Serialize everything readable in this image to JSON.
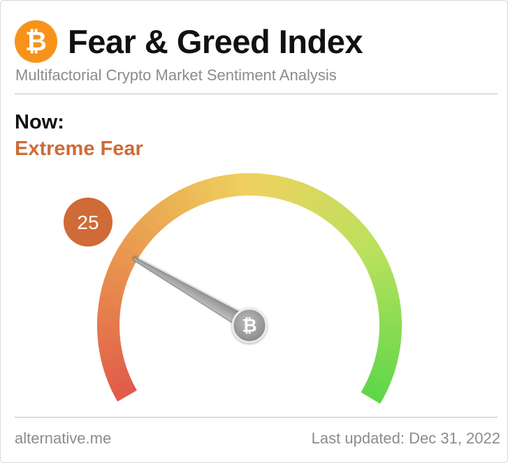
{
  "header": {
    "logo_symbol": "₿",
    "title": "Fear & Greed Index",
    "subtitle": "Multifactorial Crypto Market Sentiment Analysis"
  },
  "status": {
    "now_label": "Now:",
    "classification": "Extreme Fear",
    "classification_color": "#cf6b36"
  },
  "chart_data": {
    "type": "gauge",
    "value": 25,
    "min": 0,
    "max": 100,
    "value_label": "25",
    "badge_color": "#cf6b36",
    "needle_icon": "bitcoin-icon",
    "needle_symbol": "₿",
    "gradient_colors": [
      "#e05a4a",
      "#e9984e",
      "#efd25f",
      "#b9e15d",
      "#5ed64a"
    ]
  },
  "footer": {
    "source": "alternative.me",
    "updated": "Last updated: Dec 31, 2022"
  }
}
